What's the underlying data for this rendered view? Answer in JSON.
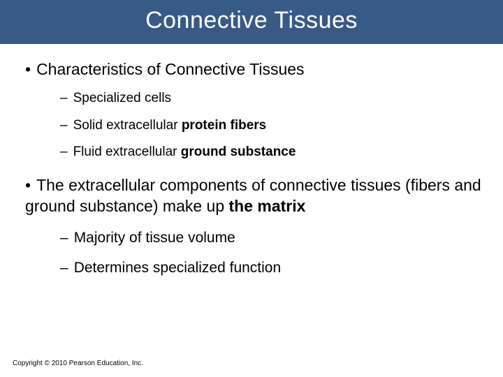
{
  "colors": {
    "title_bar_bg": "#375a87",
    "title_text": "#ffffff",
    "body_bg": "#ffffff",
    "body_text": "#000000"
  },
  "typography": {
    "title_fontsize": 34,
    "level1_fontsize": 23,
    "level2_fontsize": 19,
    "level2b_fontsize": 21,
    "copyright_fontsize": 10,
    "font_family": "Arial"
  },
  "title": "Connective Tissues",
  "bullets": [
    {
      "text": "Characteristics of Connective Tissues",
      "sub": [
        {
          "pre": "Specialized cells",
          "bold": "",
          "post": ""
        },
        {
          "pre": "Solid extracellular ",
          "bold": "protein fibers",
          "post": ""
        },
        {
          "pre": "Fluid extracellular ",
          "bold": "ground substance",
          "post": ""
        }
      ]
    },
    {
      "text_pre": "The extracellular components of connective tissues (fibers and ground substance) make up ",
      "text_bold": "the matrix",
      "text_post": "",
      "sub": [
        {
          "pre": "Majority of tissue volume",
          "bold": "",
          "post": ""
        },
        {
          "pre": "Determines specialized function",
          "bold": "",
          "post": ""
        }
      ]
    }
  ],
  "copyright": "Copyright © 2010 Pearson Education, Inc."
}
